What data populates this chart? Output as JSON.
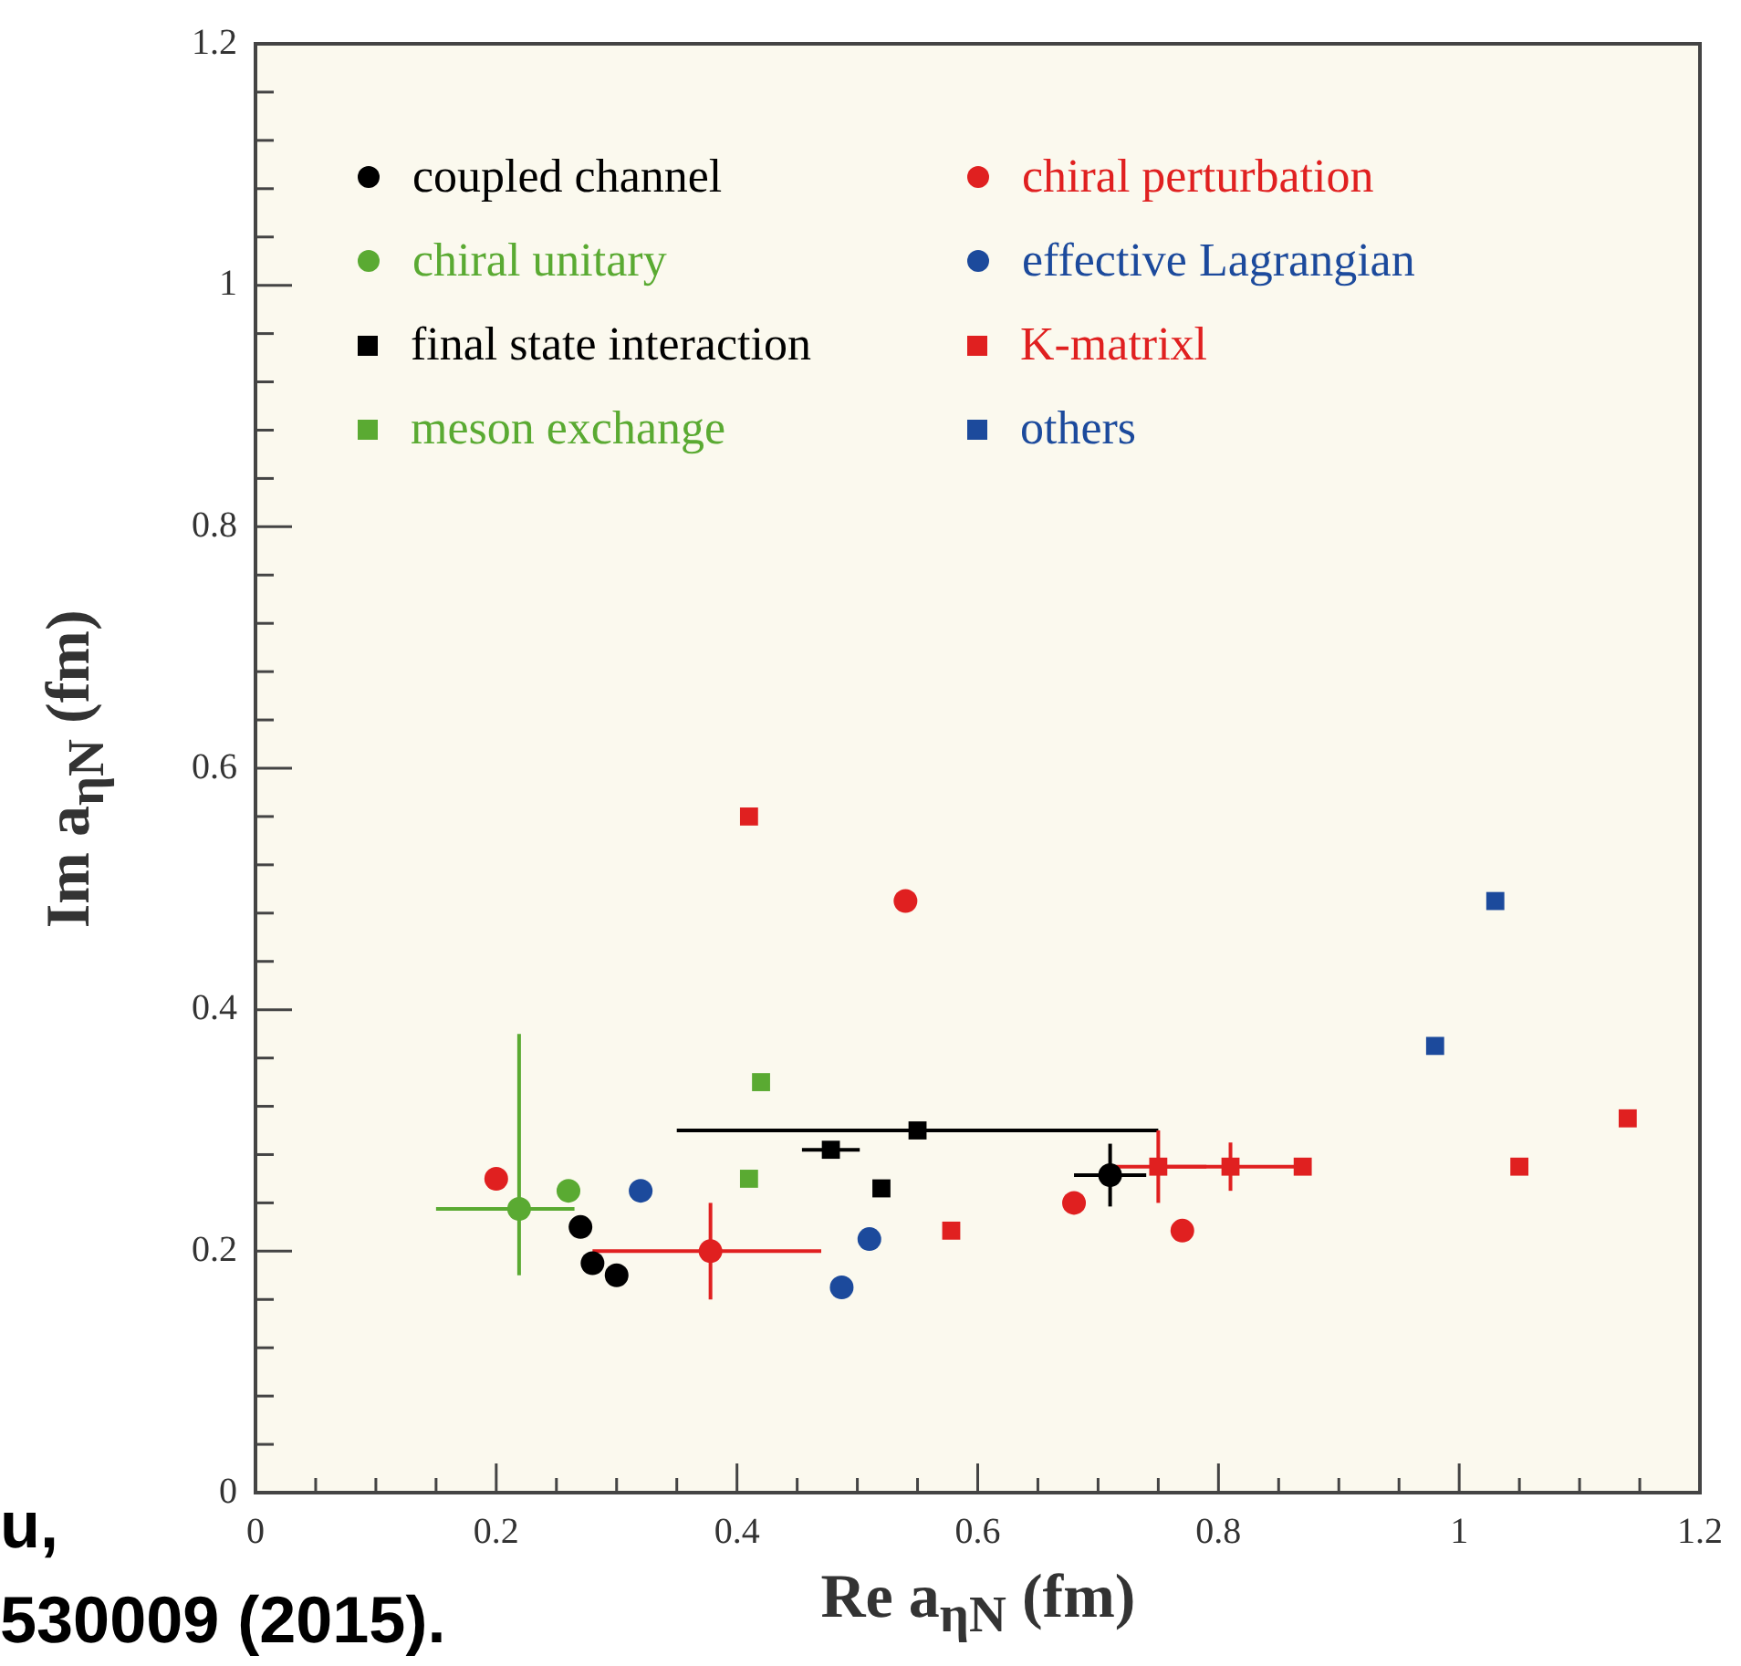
{
  "chart_data": {
    "type": "scatter",
    "xlabel": "Re a$_{ηN}$ (fm)",
    "ylabel": "Im a$_{ηN}$ (fm)",
    "xlim": [
      0,
      1.2
    ],
    "ylim": [
      0,
      1.2
    ],
    "xticks": [
      0,
      {
        "value": 0.05,
        "label": null
      },
      {
        "value": 0.1,
        "label": null
      },
      {
        "value": 0.15,
        "label": null
      },
      0.2,
      {
        "value": 0.25,
        "label": null
      },
      {
        "value": 0.3,
        "label": null
      },
      {
        "value": 0.35,
        "label": null
      },
      0.4,
      {
        "value": 0.45,
        "label": null
      },
      {
        "value": 0.5,
        "label": null
      },
      {
        "value": 0.55,
        "label": null
      },
      0.6,
      {
        "value": 0.65,
        "label": null
      },
      {
        "value": 0.7,
        "label": null
      },
      {
        "value": 0.75,
        "label": null
      },
      0.8,
      {
        "value": 0.85,
        "label": null
      },
      {
        "value": 0.9,
        "label": null
      },
      {
        "value": 0.95,
        "label": null
      },
      1,
      {
        "value": 1.05,
        "label": null
      },
      {
        "value": 1.1,
        "label": null
      },
      {
        "value": 1.15,
        "label": null
      },
      1.2
    ],
    "yticks": [
      0,
      {
        "value": 0.04,
        "label": null
      },
      {
        "value": 0.08,
        "label": null
      },
      {
        "value": 0.12,
        "label": null
      },
      {
        "value": 0.16,
        "label": null
      },
      0.2,
      {
        "value": 0.24,
        "label": null
      },
      {
        "value": 0.28,
        "label": null
      },
      {
        "value": 0.32,
        "label": null
      },
      {
        "value": 0.36,
        "label": null
      },
      0.4,
      {
        "value": 0.44,
        "label": null
      },
      {
        "value": 0.48,
        "label": null
      },
      {
        "value": 0.52,
        "label": null
      },
      {
        "value": 0.56,
        "label": null
      },
      0.6,
      {
        "value": 0.64,
        "label": null
      },
      {
        "value": 0.68,
        "label": null
      },
      {
        "value": 0.72,
        "label": null
      },
      {
        "value": 0.76,
        "label": null
      },
      0.8,
      {
        "value": 0.84,
        "label": null
      },
      {
        "value": 0.88,
        "label": null
      },
      {
        "value": 0.92,
        "label": null
      },
      {
        "value": 0.96,
        "label": null
      },
      1,
      {
        "value": 1.04,
        "label": null
      },
      {
        "value": 1.08,
        "label": null
      },
      {
        "value": 1.12,
        "label": null
      },
      {
        "value": 1.16,
        "label": null
      },
      1.2
    ],
    "legend": "top",
    "series": [
      {
        "name": "coupled channel",
        "color": "#000000",
        "marker": "circle",
        "x": [
          0.27,
          0.28,
          0.3,
          0.71
        ],
        "values": [
          0.22,
          0.19,
          0.18,
          0.263
        ],
        "xerrors": [
          null,
          null,
          null,
          0.03
        ],
        "errors": [
          null,
          null,
          null,
          0.026
        ]
      },
      {
        "name": "chiral perturbation",
        "color": "#e02020",
        "marker": "circle",
        "x": [
          0.2,
          0.378,
          0.54,
          0.68,
          0.77
        ],
        "values": [
          0.26,
          0.2,
          0.49,
          0.24,
          0.217
        ],
        "xerrors": [
          null,
          [
            0.28,
            0.47
          ],
          null,
          null,
          null
        ],
        "errors": [
          null,
          0.04,
          null,
          null,
          null
        ]
      },
      {
        "name": "chiral unitary",
        "color": "#5aaa32",
        "marker": "circle",
        "x": [
          0.219,
          0.26
        ],
        "values": [
          0.235,
          0.25
        ],
        "xerrors": [
          [
            0.15,
            0.265
          ],
          null
        ],
        "errors": [
          [
            0.18,
            0.38
          ],
          null
        ]
      },
      {
        "name": "effective Lagrangian",
        "color": "#1c4a9c",
        "marker": "circle",
        "x": [
          0.32,
          0.487,
          0.51
        ],
        "values": [
          0.25,
          0.17,
          0.21
        ]
      },
      {
        "name": "final state interaction",
        "color": "#000000",
        "marker": "square",
        "x": [
          0.478,
          0.55,
          0.52
        ],
        "values": [
          0.284,
          0.3,
          0.252
        ],
        "xerrors": [
          0.024,
          [
            0.35,
            0.75
          ],
          null
        ]
      },
      {
        "name": "K-matrixl",
        "color": "#e02020",
        "marker": "square",
        "x": [
          0.41,
          0.578,
          0.75,
          0.81,
          0.87,
          1.05,
          1.14
        ],
        "values": [
          0.56,
          0.217,
          0.27,
          0.27,
          0.27,
          0.27,
          0.31
        ],
        "xerrors": [
          null,
          null,
          0.04,
          0.06,
          null,
          null,
          null
        ],
        "errors": [
          null,
          null,
          0.03,
          0.02,
          null,
          null,
          null
        ]
      },
      {
        "name": "meson exchange",
        "color": "#5aaa32",
        "marker": "square",
        "x": [
          0.42,
          0.41
        ],
        "values": [
          0.34,
          0.26
        ]
      },
      {
        "name": "others",
        "color": "#1c4a9c",
        "marker": "square",
        "x": [
          0.98,
          1.03
        ],
        "values": [
          0.37,
          0.49
        ]
      }
    ],
    "annotations": [
      "u,",
      "530009 (2015)."
    ]
  }
}
